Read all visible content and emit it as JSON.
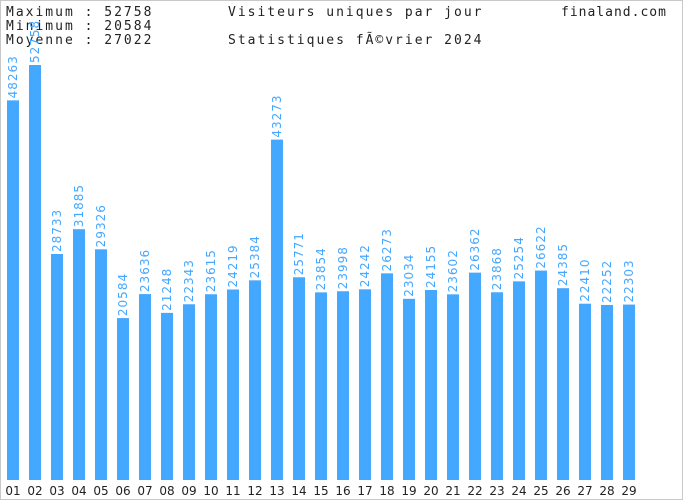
{
  "header": {
    "max_label": "Maximum",
    "max_value": "52758",
    "min_label": "Minimum",
    "min_value": "20584",
    "avg_label": "Moyenne",
    "avg_value": "27022",
    "separator": ":",
    "title": "Visiteurs uniques par jour",
    "subtitle": "Statistiques fÃ©vrier 2024",
    "site": "finaland.com"
  },
  "colors": {
    "bar": "#45a8ff",
    "value_label": "#45a8ff",
    "text": "#222222"
  },
  "chart_data": {
    "type": "bar",
    "title": "Visiteurs uniques par jour",
    "subtitle": "Statistiques fÃ©vrier 2024",
    "categories": [
      "01",
      "02",
      "03",
      "04",
      "05",
      "06",
      "07",
      "08",
      "09",
      "10",
      "11",
      "12",
      "13",
      "14",
      "15",
      "16",
      "17",
      "18",
      "19",
      "20",
      "21",
      "22",
      "23",
      "24",
      "25",
      "26",
      "27",
      "28",
      "29"
    ],
    "values": [
      48263,
      52758,
      28733,
      31885,
      29326,
      20584,
      23636,
      21248,
      22343,
      23615,
      24219,
      25384,
      43273,
      25771,
      23854,
      23998,
      24242,
      26273,
      23034,
      24155,
      23602,
      26362,
      23868,
      25254,
      26622,
      24385,
      22410,
      22252,
      22303
    ],
    "ylim": [
      0,
      57000
    ],
    "grid": false,
    "legend": "none",
    "value_labels": "vertical, above bars"
  }
}
